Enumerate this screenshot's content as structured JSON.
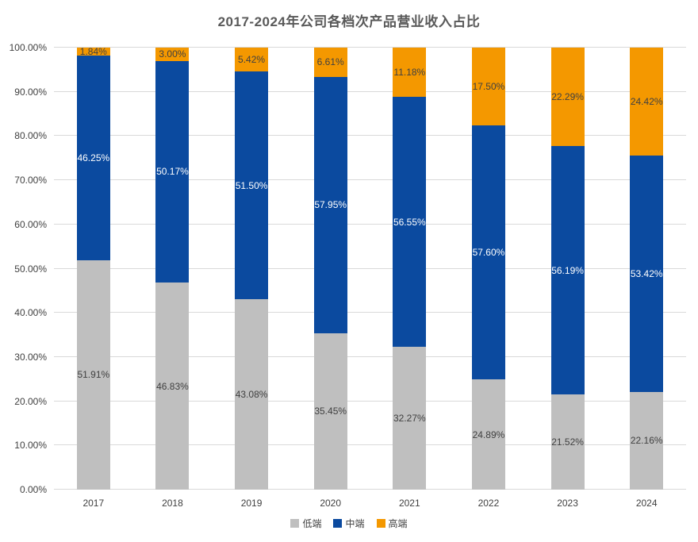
{
  "chart_data": {
    "type": "bar",
    "stacked": true,
    "title": "2017-2024年公司各档次产品营业收入占比",
    "categories": [
      "2017",
      "2018",
      "2019",
      "2020",
      "2021",
      "2022",
      "2023",
      "2024"
    ],
    "series": [
      {
        "key": "low",
        "name": "低端",
        "color": "#bfbfbf",
        "label_color": "#404040",
        "values": [
          51.91,
          46.83,
          43.08,
          35.45,
          32.27,
          24.89,
          21.52,
          22.16
        ]
      },
      {
        "key": "mid",
        "name": "中端",
        "color": "#0b4a9f",
        "label_color": "#ffffff",
        "values": [
          46.25,
          50.17,
          51.5,
          57.95,
          56.55,
          57.6,
          56.19,
          53.42
        ]
      },
      {
        "key": "high",
        "name": "高端",
        "color": "#f49800",
        "label_color": "#404040",
        "values": [
          1.84,
          3.0,
          5.42,
          6.61,
          11.18,
          17.5,
          22.29,
          24.42
        ]
      }
    ],
    "xlabel": "",
    "ylabel": "",
    "ylim": [
      0,
      100
    ],
    "y_ticks": [
      "0.00%",
      "10.00%",
      "20.00%",
      "30.00%",
      "40.00%",
      "50.00%",
      "60.00%",
      "70.00%",
      "80.00%",
      "90.00%",
      "100.00%"
    ],
    "value_suffix": "%",
    "value_decimals": 2,
    "grid": true,
    "gridline_color": "#d9d9d9",
    "axis_text_color": "#404040",
    "title_color": "#595959",
    "legend_position": "bottom"
  }
}
